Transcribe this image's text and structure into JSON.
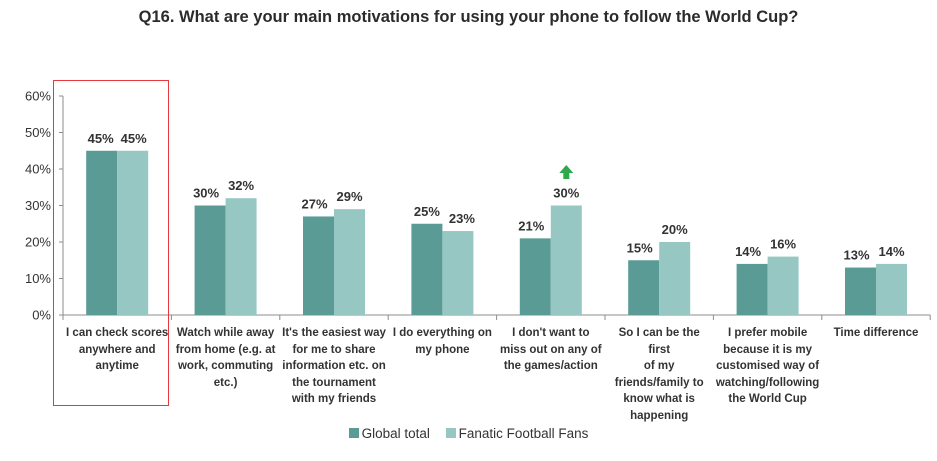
{
  "title": "Q16. What are your main motivations for using your phone to follow the World Cup?",
  "colors": {
    "global_total": "#5a9b96",
    "fanatic_fans": "#96c7c3",
    "highlight_border": "#e8383d",
    "arrow": "#2ea84a"
  },
  "chart_data": {
    "type": "bar",
    "title": "Q16. What are your main motivations for using your phone to follow the World Cup?",
    "xlabel": "",
    "ylabel": "",
    "ylim": [
      0,
      60
    ],
    "yticks": [
      "0%",
      "10%",
      "20%",
      "30%",
      "40%",
      "50%",
      "60%"
    ],
    "categories": [
      "I can check scores anywhere and anytime",
      "Watch while away from home (e.g. at work, commuting etc.)",
      "It's the easiest way for me to share information etc. on the tournament with my friends",
      "I do everything on my phone",
      "I don't want to miss out on any of the games/action",
      "So I can be the first of my friends/family to know what is happening",
      "I prefer mobile because it is my customised way of watching/following the World Cup",
      "Time difference"
    ],
    "series": [
      {
        "name": "Global total",
        "values": [
          45,
          30,
          27,
          25,
          21,
          15,
          14,
          13
        ],
        "labels": [
          "45%",
          "30%",
          "27%",
          "25%",
          "21%",
          "15%",
          "14%",
          "13%"
        ]
      },
      {
        "name": "Fanatic Football Fans",
        "values": [
          45,
          32,
          29,
          23,
          30,
          20,
          16,
          14
        ],
        "labels": [
          "45%",
          "32%",
          "29%",
          "23%",
          "30%",
          "20%",
          "16%",
          "14%"
        ]
      }
    ],
    "legend": "bottom-center",
    "grid": false,
    "highlighted_category": "I can check scores anywhere and anytime",
    "up_arrow_on": "I don't want to miss out on any of the games/action"
  },
  "category_lines": [
    [
      "I can check scores",
      "anywhere and",
      "anytime"
    ],
    [
      "Watch while away",
      "from home (e.g. at",
      "work, commuting",
      "etc.)"
    ],
    [
      "It's the easiest way",
      "for me to share",
      "information etc. on",
      "the tournament",
      "with my friends"
    ],
    [
      "I do everything on",
      "my phone"
    ],
    [
      "I don't want to",
      "miss out on any of",
      "the games/action"
    ],
    [
      "So I can be the first",
      "of my",
      "friends/family to",
      "know what is",
      "happening"
    ],
    [
      "I prefer mobile",
      "because it is my",
      "customised way of",
      "watching/following",
      "the World Cup"
    ],
    [
      "Time difference"
    ]
  ],
  "legend": {
    "global_label": "Global total",
    "fanatic_label": "Fanatic Football Fans"
  }
}
